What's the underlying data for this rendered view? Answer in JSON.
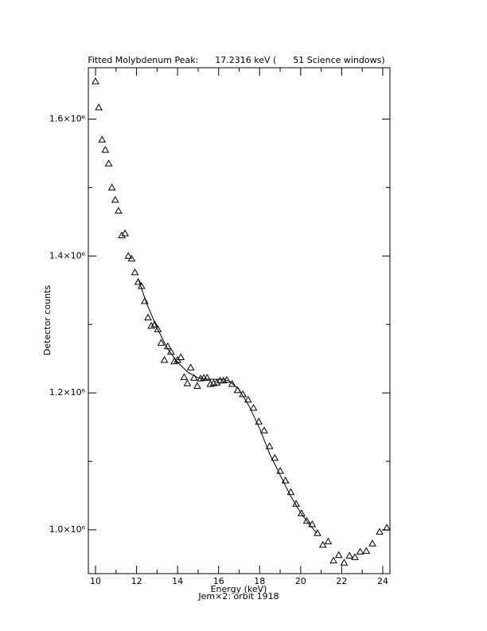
{
  "chart_data": {
    "type": "scatter",
    "title": "Fitted Molybdenum Peak:      17.2316 keV (      51 Science windows)",
    "x_label": "Energy (keV)",
    "y_label": "Detector counts",
    "footer": "Jem×2: orbit 1918",
    "xlim": [
      9.65,
      24.35
    ],
    "ylim": [
      936000,
      1675000
    ],
    "xticks": [
      10,
      12,
      14,
      16,
      18,
      20,
      22,
      24
    ],
    "xminorticks": [
      11,
      13,
      15,
      17,
      19,
      21,
      23
    ],
    "yticks": [
      {
        "value": 1000000,
        "label": "1.0×10⁶"
      },
      {
        "value": 1200000,
        "label": "1.2×10⁶"
      },
      {
        "value": 1400000,
        "label": "1.4×10⁶"
      },
      {
        "value": 1600000,
        "label": "1.6×10⁶"
      }
    ],
    "yminorticks": [
      1100000,
      1300000,
      1500000
    ],
    "series": [
      {
        "type": "scatter",
        "marker": "triangle",
        "color": "#000000",
        "x": [
          10.0,
          10.16,
          10.32,
          10.48,
          10.64,
          10.8,
          10.96,
          11.12,
          11.28,
          11.44,
          11.6,
          11.76,
          11.92,
          12.08,
          12.24,
          12.4,
          12.56,
          12.72,
          12.88,
          13.04,
          13.2,
          13.36,
          13.52,
          13.68,
          13.84,
          14.0,
          14.16,
          14.32,
          14.48,
          14.64,
          14.8,
          14.96,
          15.12,
          15.28,
          15.44,
          15.6,
          15.76,
          15.92,
          16.08,
          16.24,
          16.4,
          16.66,
          16.92,
          17.18,
          17.44,
          17.7,
          17.96,
          18.22,
          18.48,
          18.74,
          19.0,
          19.26,
          19.52,
          19.78,
          20.04,
          20.3,
          20.56,
          20.82,
          21.08,
          21.34,
          21.6,
          21.86,
          22.12,
          22.38,
          22.64,
          22.9,
          23.2,
          23.5,
          23.85,
          24.2
        ],
        "values": [
          1655000,
          1617000,
          1570000,
          1555000,
          1535000,
          1500000,
          1482000,
          1466000,
          1430000,
          1433000,
          1400000,
          1396000,
          1376000,
          1362000,
          1356000,
          1334000,
          1310000,
          1298000,
          1300000,
          1293000,
          1273000,
          1248000,
          1268000,
          1260000,
          1246000,
          1248000,
          1252000,
          1223000,
          1214000,
          1237000,
          1222000,
          1210000,
          1221000,
          1222000,
          1222000,
          1213000,
          1214000,
          1215000,
          1218000,
          1218000,
          1219000,
          1213000,
          1204000,
          1198000,
          1190000,
          1178000,
          1158000,
          1145000,
          1122000,
          1105000,
          1086000,
          1072000,
          1055000,
          1038000,
          1024000,
          1013000,
          1008000,
          995000,
          978000,
          983000,
          955000,
          963000,
          952000,
          962000,
          960000,
          968000,
          969000,
          980000,
          997000,
          1003000
        ]
      },
      {
        "type": "line",
        "color": "#000000",
        "x": [
          12.1,
          12.5,
          13.0,
          13.5,
          14.0,
          14.5,
          15.0,
          15.5,
          16.0,
          16.5,
          17.0,
          17.5,
          18.0,
          18.5,
          19.0,
          19.5,
          20.0,
          20.5,
          20.8
        ],
        "values": [
          1365000,
          1330000,
          1295000,
          1265000,
          1245000,
          1230000,
          1222000,
          1220000,
          1220000,
          1218000,
          1205000,
          1180000,
          1148000,
          1110000,
          1080000,
          1050000,
          1025000,
          1005000,
          995000
        ]
      }
    ]
  }
}
